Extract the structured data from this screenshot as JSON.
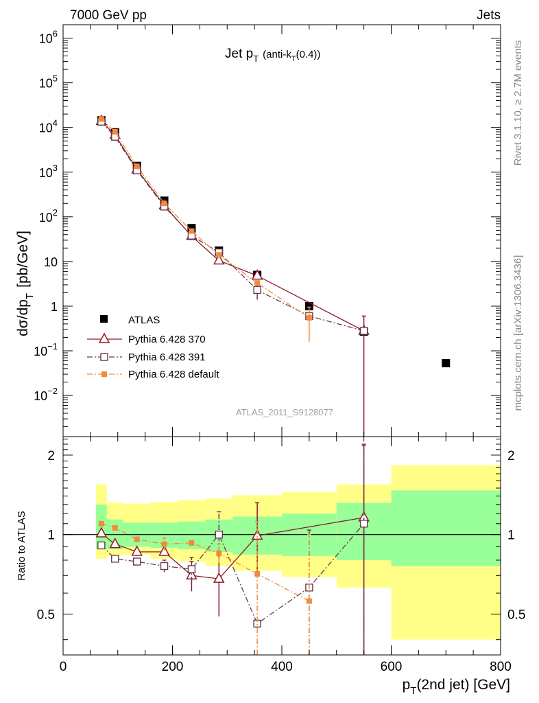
{
  "header": {
    "left": "7000 GeV pp",
    "right": "Jets"
  },
  "side": {
    "rivet": "Rivet 3.1.10, ≥ 2.7M events",
    "mcplots": "mcplots.cern.ch [arXiv:1306.3436]"
  },
  "watermark": "ATLAS_2011_S9128077",
  "colors": {
    "atlas": "#000000",
    "p370": "#8b1a28",
    "p391": "#6b3a4f",
    "pdef": "#f28a3c",
    "band_yellow": "#ffff88",
    "band_green": "#99ff99"
  },
  "chart_data": [
    {
      "type": "scatter",
      "panel": "main",
      "title": "Jet p_T (anti-k_T(0.4))",
      "title_main": "Jet p",
      "title_sub": "T",
      "title_rest": "(anti-k",
      "title_sub2": "T",
      "title_end": "(0.4))",
      "ylabel": "dσ/dp_T [pb/GeV]",
      "ylabel_main": "dσ/dp",
      "ylabel_sub": "T",
      "ylabel_unit": "[pb/GeV]",
      "yscale": "log",
      "xlim": [
        0,
        800
      ],
      "ylim": [
        0.0012,
        2000000
      ],
      "y_ticks": [
        {
          "base": "10",
          "exp": "6"
        },
        {
          "base": "10",
          "exp": "5"
        },
        {
          "base": "10",
          "exp": "4"
        },
        {
          "base": "10",
          "exp": "3"
        },
        {
          "base": "10",
          "exp": "2"
        },
        {
          "base": "10",
          "exp": ""
        },
        {
          "base": "1",
          "exp": ""
        },
        {
          "base": "10",
          "exp": "−1"
        },
        {
          "base": "10",
          "exp": "−2"
        }
      ],
      "legend": {
        "position": "middle-left",
        "entries": [
          "ATLAS",
          "Pythia 6.428 370",
          "Pythia 6.428 391",
          "Pythia 6.428 default"
        ]
      },
      "series": [
        {
          "name": "ATLAS",
          "style": "filled-square",
          "x": [
            70,
            95,
            135,
            185,
            235,
            285,
            355,
            450,
            550,
            700
          ],
          "y": [
            14500,
            7800,
            1380,
            230,
            56,
            17.5,
            5.0,
            1.0,
            0.27,
            0.053
          ]
        },
        {
          "name": "Pythia 6.428 370",
          "style": "open-triangle-solid",
          "x": [
            70,
            95,
            135,
            185,
            235,
            285,
            355,
            550
          ],
          "y": [
            14000,
            6800,
            1150,
            180,
            37,
            10.5,
            4.8,
            0.28
          ],
          "err_x": [
            550
          ],
          "err_lo": [
            0.0012
          ],
          "err_hi": [
            0.6
          ]
        },
        {
          "name": "Pythia 6.428 391",
          "style": "open-square-dashdot",
          "x": [
            70,
            95,
            135,
            185,
            235,
            285,
            355,
            450,
            550
          ],
          "y": [
            13500,
            6200,
            1100,
            170,
            38,
            16,
            2.3,
            0.6,
            0.28
          ],
          "err_x": [
            355
          ],
          "err_lo": [
            1.4
          ],
          "err_hi": [
            3.2
          ]
        },
        {
          "name": "Pythia 6.428 default",
          "style": "filled-small-square-dashdot",
          "x": [
            70,
            95,
            135,
            185,
            235,
            285,
            355,
            450
          ],
          "y": [
            15500,
            8000,
            1350,
            200,
            48,
            14,
            3.3,
            0.55
          ],
          "err_x": [
            450
          ],
          "err_lo": [
            0.16
          ],
          "err_hi": [
            0.95
          ]
        }
      ]
    },
    {
      "type": "scatter",
      "panel": "ratio",
      "ylabel": "Ratio to ATLAS",
      "xlabel": "p_T(2nd jet) [GeV]",
      "xlabel_main": "p",
      "xlabel_sub": "T",
      "xlabel_rest": "(2nd jet) [GeV]",
      "xlim": [
        0,
        800
      ],
      "ylim": [
        0.35,
        2.35
      ],
      "x_ticks": [
        "0",
        "200",
        "400",
        "600",
        "800"
      ],
      "y_ticks": [
        "2",
        "1",
        "0.5"
      ],
      "y_tick_values": [
        2,
        1,
        0.5
      ],
      "bands": [
        {
          "x0": 60,
          "x1": 80,
          "yellow": [
            0.81,
            1.55
          ],
          "green": [
            0.88,
            1.3
          ]
        },
        {
          "x0": 80,
          "x1": 110,
          "yellow": [
            0.83,
            1.32
          ],
          "green": [
            0.88,
            1.14
          ]
        },
        {
          "x0": 110,
          "x1": 160,
          "yellow": [
            0.84,
            1.31
          ],
          "green": [
            0.9,
            1.11
          ]
        },
        {
          "x0": 160,
          "x1": 210,
          "yellow": [
            0.81,
            1.33
          ],
          "green": [
            0.89,
            1.11
          ]
        },
        {
          "x0": 210,
          "x1": 260,
          "yellow": [
            0.79,
            1.35
          ],
          "green": [
            0.88,
            1.12
          ]
        },
        {
          "x0": 260,
          "x1": 310,
          "yellow": [
            0.76,
            1.37
          ],
          "green": [
            0.86,
            1.14
          ]
        },
        {
          "x0": 310,
          "x1": 400,
          "yellow": [
            0.73,
            1.41
          ],
          "green": [
            0.84,
            1.17
          ]
        },
        {
          "x0": 400,
          "x1": 500,
          "yellow": [
            0.69,
            1.45
          ],
          "green": [
            0.83,
            1.2
          ]
        },
        {
          "x0": 500,
          "x1": 600,
          "yellow": [
            0.63,
            1.55
          ],
          "green": [
            0.8,
            1.32
          ]
        },
        {
          "x0": 600,
          "x1": 800,
          "yellow": [
            0.4,
            1.83
          ],
          "green": [
            0.76,
            1.47
          ]
        }
      ],
      "series": [
        {
          "name": "Pythia 6.428 370",
          "x": [
            70,
            95,
            135,
            185,
            235,
            285,
            355,
            550
          ],
          "y": [
            1.01,
            0.92,
            0.86,
            0.86,
            0.7,
            0.68,
            0.99,
            1.16
          ],
          "err_x": [
            235,
            285,
            355,
            550
          ],
          "err_lo": [
            0.61,
            0.49,
            0.72,
            0.3
          ],
          "err_hi": [
            0.79,
            0.85,
            1.32,
            2.2
          ]
        },
        {
          "name": "Pythia 6.428 391",
          "x": [
            70,
            95,
            135,
            185,
            235,
            285,
            355,
            450,
            550
          ],
          "y": [
            0.91,
            0.81,
            0.79,
            0.76,
            0.74,
            1.0,
            0.46,
            0.63,
            1.1
          ],
          "err_x": [
            185,
            235,
            285,
            450,
            550
          ],
          "err_lo": [
            0.72,
            0.66,
            0.78,
            0.3,
            0.3
          ],
          "err_hi": [
            0.8,
            0.82,
            1.22,
            1.04,
            2.17
          ]
        },
        {
          "name": "Pythia 6.428 default",
          "x": [
            70,
            95,
            135,
            185,
            235,
            285,
            355,
            450
          ],
          "y": [
            1.1,
            1.06,
            0.96,
            0.92,
            0.93,
            0.85,
            0.71,
            0.56
          ],
          "err_x": [
            185,
            285,
            355,
            450
          ],
          "err_lo": [
            0.87,
            0.78,
            0.3,
            0.3
          ],
          "err_hi": [
            0.97,
            0.92,
            1.12,
            1.0
          ]
        }
      ]
    }
  ]
}
